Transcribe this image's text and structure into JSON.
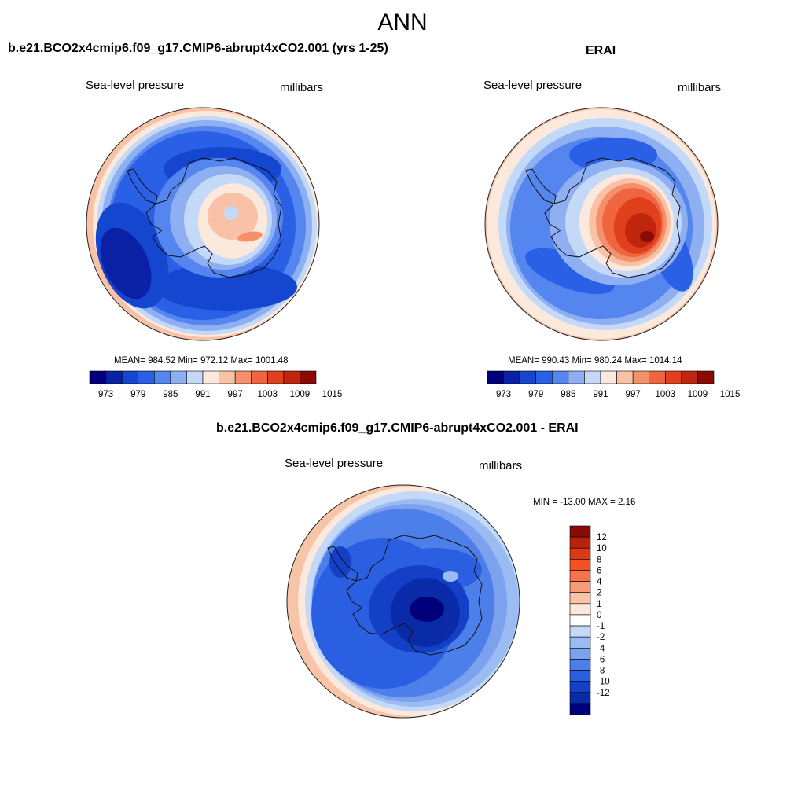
{
  "page": {
    "title": "ANN"
  },
  "chart_data": [
    {
      "type": "contour_map",
      "title": "b.e21.BCO2x4cmip6.f09_g17.CMIP6-abrupt4xCO2.001 (yrs 1-25)",
      "left_string": "Sea-level pressure",
      "right_string": "millibars",
      "projection": "south-polar-stereographic",
      "stats_text": "MEAN= 984.52  Min= 972.12  Max= 1001.48",
      "stats": {
        "mean": 984.52,
        "min": 972.12,
        "max": 1001.48
      },
      "colorbar": {
        "orientation": "horizontal",
        "levels": [
          973,
          976,
          979,
          982,
          985,
          988,
          991,
          994,
          997,
          1000,
          1003,
          1006,
          1009,
          1012,
          1015
        ],
        "tick_labels": [
          "973",
          "979",
          "985",
          "991",
          "997",
          "1003",
          "1009",
          "1015"
        ],
        "colors": [
          "#00007a",
          "#0a21a6",
          "#1446cf",
          "#2a60e6",
          "#5585ee",
          "#8eb0f3",
          "#c4d8f8",
          "#fbe9dd",
          "#f9c2a6",
          "#f4916a",
          "#ee6540",
          "#e0401c",
          "#c0260e",
          "#8a0a05"
        ]
      }
    },
    {
      "type": "contour_map",
      "title": "ERAI",
      "left_string": "Sea-level pressure",
      "right_string": "millibars",
      "projection": "south-polar-stereographic",
      "stats_text": "MEAN= 990.43  Min= 980.24  Max= 1014.14",
      "stats": {
        "mean": 990.43,
        "min": 980.24,
        "max": 1014.14
      },
      "colorbar": {
        "orientation": "horizontal",
        "levels": [
          973,
          976,
          979,
          982,
          985,
          988,
          991,
          994,
          997,
          1000,
          1003,
          1006,
          1009,
          1012,
          1015
        ],
        "tick_labels": [
          "973",
          "979",
          "985",
          "991",
          "997",
          "1003",
          "1009",
          "1015"
        ],
        "colors": [
          "#00007a",
          "#0a21a6",
          "#1446cf",
          "#2a60e6",
          "#5585ee",
          "#8eb0f3",
          "#c4d8f8",
          "#fbe9dd",
          "#f9c2a6",
          "#f4916a",
          "#ee6540",
          "#e0401c",
          "#c0260e",
          "#8a0a05"
        ]
      }
    },
    {
      "type": "contour_map",
      "title": "b.e21.BCO2x4cmip6.f09_g17.CMIP6-abrupt4xCO2.001 - ERAI",
      "left_string": "Sea-level pressure",
      "right_string": "millibars",
      "projection": "south-polar-stereographic",
      "stats_text": "MIN = -13.00 MAX =   2.16",
      "stats": {
        "min": -13.0,
        "max": 2.16
      },
      "colorbar": {
        "orientation": "vertical",
        "levels": [
          12,
          10,
          8,
          6,
          4,
          2,
          1,
          0,
          -1,
          -2,
          -4,
          -6,
          -8,
          -10,
          -12
        ],
        "tick_labels": [
          "12",
          "10",
          "8",
          "6",
          "4",
          "2",
          "1",
          "0",
          "-1",
          "-2",
          "-4",
          "-6",
          "-8",
          "-10",
          "-12"
        ],
        "colors": [
          "#8a0a05",
          "#b8220c",
          "#dc3a16",
          "#f25222",
          "#f57448",
          "#f59b77",
          "#f8c4a7",
          "#fbe9dd",
          "#ffffff",
          "#c4d8f8",
          "#9abcf3",
          "#7ba1ef",
          "#4d7fea",
          "#2b5fe2",
          "#1440c8",
          "#0a2ba8",
          "#00007a"
        ]
      }
    }
  ]
}
